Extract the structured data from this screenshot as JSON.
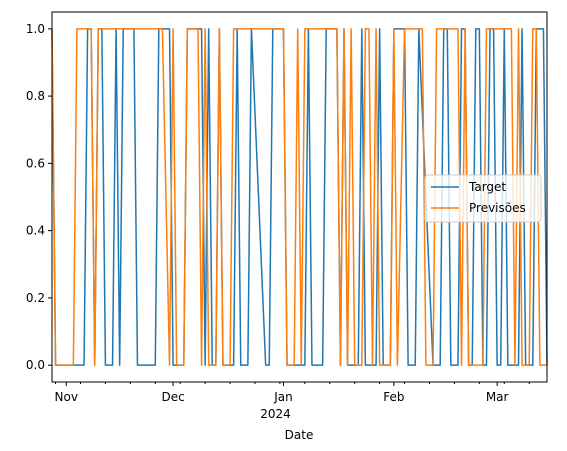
{
  "chart_data": {
    "type": "line",
    "xlabel": "Date",
    "x_tick_labels": [
      {
        "date": "2023-11-01",
        "label": "Nov"
      },
      {
        "date": "2023-12-01",
        "label": "Dec"
      },
      {
        "date": "2024-01-01",
        "label": "Jan",
        "sublabel": "2024"
      },
      {
        "date": "2024-02-01",
        "label": "Feb"
      },
      {
        "date": "2024-03-01",
        "label": "Mar"
      }
    ],
    "xlim": [
      "2023-10-28",
      "2024-03-15"
    ],
    "ylim": [
      -0.05,
      1.05
    ],
    "y_ticks": [
      0.0,
      0.2,
      0.4,
      0.6,
      0.8,
      1.0
    ],
    "y_tick_labels": [
      "0.0",
      "0.2",
      "0.4",
      "0.6",
      "0.8",
      "1.0"
    ],
    "grid": false,
    "legend_position": "center-right",
    "series": [
      {
        "name": "Target",
        "color": "#1f77b4",
        "points": [
          [
            "2023-10-28",
            1
          ],
          [
            "2023-10-29",
            0
          ],
          [
            "2023-11-06",
            0
          ],
          [
            "2023-11-07",
            1
          ],
          [
            "2023-11-08",
            1
          ],
          [
            "2023-11-09",
            0
          ],
          [
            "2023-11-10",
            1
          ],
          [
            "2023-11-11",
            1
          ],
          [
            "2023-11-12",
            0
          ],
          [
            "2023-11-14",
            0
          ],
          [
            "2023-11-15",
            1
          ],
          [
            "2023-11-16",
            0
          ],
          [
            "2023-11-17",
            1
          ],
          [
            "2023-11-20",
            1
          ],
          [
            "2023-11-21",
            0
          ],
          [
            "2023-11-26",
            0
          ],
          [
            "2023-11-27",
            1
          ],
          [
            "2023-11-30",
            1
          ],
          [
            "2023-12-01",
            0
          ],
          [
            "2023-12-04",
            0
          ],
          [
            "2023-12-05",
            1
          ],
          [
            "2023-12-09",
            1
          ],
          [
            "2023-12-10",
            0
          ],
          [
            "2023-12-11",
            1
          ],
          [
            "2023-12-12",
            0
          ],
          [
            "2023-12-13",
            0
          ],
          [
            "2023-12-14",
            1
          ],
          [
            "2023-12-15",
            0
          ],
          [
            "2023-12-18",
            0
          ],
          [
            "2023-12-19",
            1
          ],
          [
            "2023-12-20",
            0
          ],
          [
            "2023-12-22",
            0
          ],
          [
            "2023-12-23",
            1
          ],
          [
            "2023-12-27",
            0
          ],
          [
            "2023-12-28",
            0
          ],
          [
            "2023-12-29",
            1
          ],
          [
            "2024-01-01",
            1
          ],
          [
            "2024-01-02",
            0
          ],
          [
            "2024-01-07",
            0
          ],
          [
            "2024-01-08",
            1
          ],
          [
            "2024-01-09",
            0
          ],
          [
            "2024-01-12",
            0
          ],
          [
            "2024-01-13",
            1
          ],
          [
            "2024-01-16",
            1
          ],
          [
            "2024-01-17",
            0
          ],
          [
            "2024-01-18",
            1
          ],
          [
            "2024-01-19",
            0
          ],
          [
            "2024-01-22",
            0
          ],
          [
            "2024-01-23",
            1
          ],
          [
            "2024-01-24",
            0
          ],
          [
            "2024-01-27",
            0
          ],
          [
            "2024-01-28",
            1
          ],
          [
            "2024-01-29",
            0
          ],
          [
            "2024-01-31",
            0
          ],
          [
            "2024-02-01",
            1
          ],
          [
            "2024-02-04",
            1
          ],
          [
            "2024-02-05",
            0
          ],
          [
            "2024-02-07",
            0
          ],
          [
            "2024-02-08",
            1
          ],
          [
            "2024-02-12",
            0
          ],
          [
            "2024-02-14",
            0
          ],
          [
            "2024-02-15",
            1
          ],
          [
            "2024-02-16",
            1
          ],
          [
            "2024-02-17",
            0
          ],
          [
            "2024-02-19",
            0
          ],
          [
            "2024-02-20",
            1
          ],
          [
            "2024-02-21",
            1
          ],
          [
            "2024-02-22",
            0
          ],
          [
            "2024-02-23",
            0
          ],
          [
            "2024-02-24",
            1
          ],
          [
            "2024-02-25",
            1
          ],
          [
            "2024-02-26",
            0
          ],
          [
            "2024-02-27",
            0
          ],
          [
            "2024-02-28",
            1
          ],
          [
            "2024-02-29",
            1
          ],
          [
            "2024-03-01",
            0
          ],
          [
            "2024-03-02",
            0
          ],
          [
            "2024-03-03",
            1
          ],
          [
            "2024-03-04",
            0
          ],
          [
            "2024-03-07",
            0
          ],
          [
            "2024-03-08",
            1
          ],
          [
            "2024-03-09",
            0
          ],
          [
            "2024-03-11",
            0
          ],
          [
            "2024-03-12",
            1
          ],
          [
            "2024-03-14",
            1
          ],
          [
            "2024-03-15",
            0
          ]
        ]
      },
      {
        "name": "Previsões",
        "color": "#ff7f0e",
        "points": [
          [
            "2023-10-28",
            1
          ],
          [
            "2023-10-29",
            0
          ],
          [
            "2023-11-03",
            0
          ],
          [
            "2023-11-04",
            1
          ],
          [
            "2023-11-08",
            1
          ],
          [
            "2023-11-09",
            0
          ],
          [
            "2023-11-10",
            1
          ],
          [
            "2023-11-28",
            1
          ],
          [
            "2023-11-30",
            0
          ],
          [
            "2023-12-01",
            1
          ],
          [
            "2023-12-02",
            0
          ],
          [
            "2023-12-04",
            0
          ],
          [
            "2023-12-05",
            1
          ],
          [
            "2023-12-08",
            1
          ],
          [
            "2023-12-09",
            0
          ],
          [
            "2023-12-10",
            1
          ],
          [
            "2023-12-11",
            0
          ],
          [
            "2023-12-13",
            0
          ],
          [
            "2023-12-14",
            1
          ],
          [
            "2023-12-15",
            0
          ],
          [
            "2023-12-17",
            0
          ],
          [
            "2023-12-18",
            1
          ],
          [
            "2024-01-01",
            1
          ],
          [
            "2024-01-02",
            0
          ],
          [
            "2024-01-04",
            0
          ],
          [
            "2024-01-05",
            1
          ],
          [
            "2024-01-06",
            0
          ],
          [
            "2024-01-07",
            1
          ],
          [
            "2024-01-16",
            1
          ],
          [
            "2024-01-17",
            0
          ],
          [
            "2024-01-18",
            1
          ],
          [
            "2024-01-19",
            0
          ],
          [
            "2024-01-20",
            1
          ],
          [
            "2024-01-21",
            0
          ],
          [
            "2024-01-23",
            0
          ],
          [
            "2024-01-24",
            1
          ],
          [
            "2024-01-25",
            1
          ],
          [
            "2024-01-26",
            0
          ],
          [
            "2024-01-27",
            1
          ],
          [
            "2024-01-28",
            0
          ],
          [
            "2024-01-31",
            0
          ],
          [
            "2024-02-01",
            1
          ],
          [
            "2024-02-02",
            0
          ],
          [
            "2024-02-04",
            1
          ],
          [
            "2024-02-09",
            1
          ],
          [
            "2024-02-10",
            0
          ],
          [
            "2024-02-12",
            0
          ],
          [
            "2024-02-13",
            1
          ],
          [
            "2024-02-19",
            1
          ],
          [
            "2024-02-20",
            0
          ],
          [
            "2024-02-21",
            1
          ],
          [
            "2024-02-22",
            0
          ],
          [
            "2024-02-26",
            0
          ],
          [
            "2024-02-27",
            1
          ],
          [
            "2024-03-05",
            1
          ],
          [
            "2024-03-06",
            0
          ],
          [
            "2024-03-07",
            1
          ],
          [
            "2024-03-08",
            0
          ],
          [
            "2024-03-10",
            0
          ],
          [
            "2024-03-11",
            1
          ],
          [
            "2024-03-12",
            1
          ],
          [
            "2024-03-13",
            0
          ],
          [
            "2024-03-15",
            0
          ]
        ]
      }
    ]
  }
}
